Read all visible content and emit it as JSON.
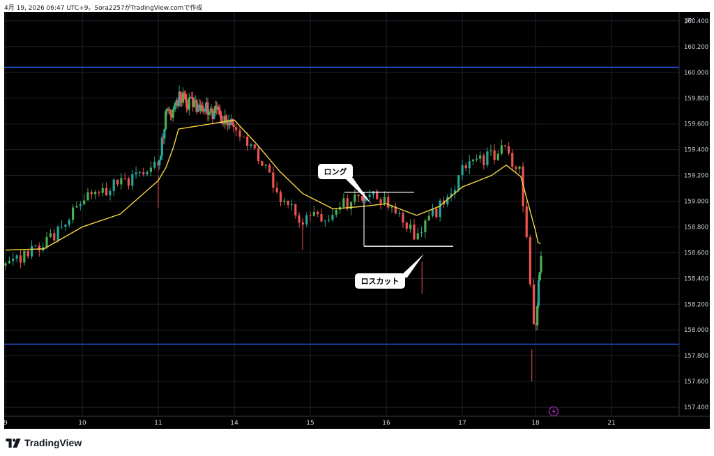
{
  "header": {
    "text": "4月 19, 2026 06:47 UTC+9。Sora2257がTradingView.comで作成"
  },
  "footer": {
    "brand": "TradingView"
  },
  "colors": {
    "background": "#000000",
    "up_candle": "#26a69a",
    "up_candle_bright": "#4caf50",
    "down_candle": "#ef5350",
    "ema_line": "#f5d742",
    "horizontal_level": "#2962ff",
    "annotation_line": "#ffffff",
    "grid": "#1e222d",
    "axis_text": "#d1d4dc",
    "flash_badge": "#9c27b0"
  },
  "chart_data": {
    "type": "candlestick",
    "symbol_currency": "JPY",
    "x_ticks": [
      "9",
      "10",
      "11",
      "14",
      "15",
      "16",
      "17",
      "18",
      "21"
    ],
    "y_ticks": [
      "160.400",
      "160.200",
      "160.000",
      "159.800",
      "159.600",
      "159.400",
      "159.200",
      "159.000",
      "158.800",
      "158.600",
      "158.400",
      "158.200",
      "158.000",
      "157.800",
      "157.600",
      "157.400"
    ],
    "ylim": [
      157.33,
      160.47
    ],
    "grid": true,
    "horizontal_levels": [
      160.04,
      157.89
    ],
    "ema_points": [
      [
        "9",
        158.62
      ],
      [
        "9.5",
        158.63
      ],
      [
        "10",
        158.8
      ],
      [
        "10.5",
        158.9
      ],
      [
        "11",
        159.16
      ],
      [
        "11.3",
        159.26
      ],
      [
        "11.6",
        159.42
      ],
      [
        "11.8",
        159.56
      ],
      [
        "14",
        159.63
      ],
      [
        "14.3",
        159.44
      ],
      [
        "14.6",
        159.23
      ],
      [
        "14.9",
        159.06
      ],
      [
        "15.3",
        158.94
      ],
      [
        "15.7",
        158.96
      ],
      [
        "16",
        158.98
      ],
      [
        "16.4",
        158.89
      ],
      [
        "16.7",
        158.96
      ],
      [
        "17",
        159.11
      ],
      [
        "17.4",
        159.2
      ],
      [
        "17.6",
        159.28
      ],
      [
        "17.8",
        159.19
      ],
      [
        "18",
        158.77
      ],
      [
        "18.1",
        158.68
      ],
      [
        "18.2",
        158.67
      ]
    ],
    "candles": [
      [
        "9",
        158.5,
        158.58,
        158.42
      ],
      [
        "9.5",
        158.65,
        158.9,
        158.55
      ],
      [
        "10",
        159.0,
        159.22,
        158.75
      ],
      [
        "10.5",
        159.15,
        159.4,
        159.02
      ],
      [
        "11",
        159.28,
        159.42,
        158.95
      ],
      [
        "11.3",
        159.65,
        159.85,
        159.55
      ],
      [
        "11.6",
        159.72,
        159.82,
        159.62
      ],
      [
        "11.8",
        159.8,
        159.87,
        159.6
      ],
      [
        "14",
        159.62,
        159.72,
        159.5
      ],
      [
        "14.3",
        159.35,
        159.5,
        159.22
      ],
      [
        "14.6",
        159.05,
        159.2,
        158.95
      ],
      [
        "14.9",
        158.82,
        158.95,
        158.62
      ],
      [
        "15.3",
        158.93,
        159.02,
        158.85
      ],
      [
        "15.7",
        159.05,
        159.12,
        158.9
      ],
      [
        "16",
        159.02,
        159.1,
        158.95
      ],
      [
        "16.4",
        158.72,
        158.85,
        158.28
      ],
      [
        "16.7",
        158.95,
        159.05,
        158.85
      ],
      [
        "17",
        159.22,
        159.3,
        159.1
      ],
      [
        "17.4",
        159.35,
        159.47,
        159.28
      ],
      [
        "17.6",
        159.4,
        159.52,
        159.25
      ],
      [
        "17.8",
        159.2,
        159.26,
        159.0
      ],
      [
        "18",
        157.9,
        158.3,
        157.6
      ],
      [
        "18.1",
        158.25,
        158.5,
        157.85
      ],
      [
        "18.2",
        158.6,
        158.66,
        158.45
      ]
    ],
    "annotations": [
      {
        "label": "ロング",
        "kind": "callout"
      },
      {
        "label": "ロスカット",
        "kind": "callout"
      }
    ],
    "trade_range": {
      "upper": 159.07,
      "lower": 158.65
    }
  }
}
